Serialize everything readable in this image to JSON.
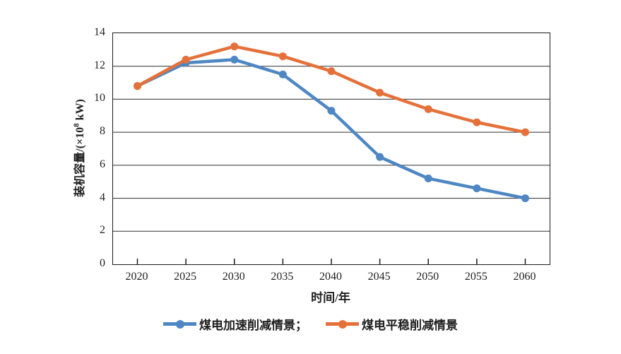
{
  "chart_data": {
    "type": "line",
    "title": "",
    "xlabel": "时间/年",
    "ylabel": "装机容量/(×10⁸ kW)",
    "ylabel_parts": {
      "main": "装机容量/(×10",
      "sup": "8",
      "suffix": " kW)"
    },
    "categories": [
      "2020",
      "2025",
      "2030",
      "2035",
      "2040",
      "2045",
      "2050",
      "2055",
      "2060"
    ],
    "series": [
      {
        "name": "煤电加速削减情景",
        "values": [
          10.8,
          12.2,
          12.4,
          11.5,
          9.3,
          6.5,
          5.2,
          4.6,
          4.0
        ],
        "color": "#4E87C3"
      },
      {
        "name": "煤电平稳削减情景",
        "values": [
          10.8,
          12.4,
          13.2,
          12.6,
          11.7,
          10.4,
          9.4,
          8.6,
          8.0
        ],
        "color": "#E5713A"
      }
    ],
    "legend_items": [
      {
        "label": "煤电加速削减情景；"
      },
      {
        "label": "煤电平稳削减情景"
      }
    ],
    "ylim": [
      0,
      14
    ],
    "ytick_step": 2,
    "grid": "horizontal",
    "legend_position": "bottom",
    "marker": "circle",
    "axis_color": "#1c1c1c",
    "text_color": "#1f1f1f"
  }
}
